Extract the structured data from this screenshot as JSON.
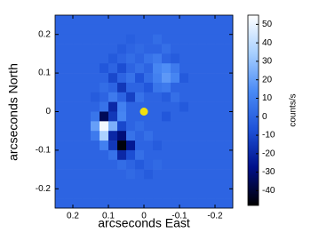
{
  "chart_data": {
    "type": "heatmap",
    "xlabel": "arcseconds East",
    "ylabel": "arcseconds North",
    "colorbar_label": "counts/s",
    "xlim": [
      0.25,
      -0.25
    ],
    "xticks": [
      0.2,
      0.1,
      0,
      -0.1,
      -0.2
    ],
    "ylim": [
      -0.25,
      0.25
    ],
    "yticks": [
      -0.2,
      -0.1,
      0,
      0.1,
      0.2
    ],
    "zlim": [
      -48,
      55
    ],
    "zticks": [
      -40,
      -30,
      -20,
      -10,
      0,
      10,
      20,
      30,
      40,
      50
    ],
    "colormap": [
      "#000000",
      "#00108a",
      "#1e52d8",
      "#4a8af5",
      "#a8d0ff",
      "#ffffff"
    ],
    "marker": {
      "x": 0,
      "y": 0,
      "color": "#f0e010"
    },
    "z": [
      [
        0,
        0,
        0,
        0,
        0,
        0,
        0,
        0,
        0,
        0,
        0,
        0,
        0,
        0,
        0,
        0,
        0,
        0,
        0,
        0
      ],
      [
        0,
        0,
        0,
        0,
        0,
        0,
        0,
        0,
        0,
        0,
        0,
        0,
        0,
        0,
        0,
        0,
        0,
        0,
        0,
        0
      ],
      [
        0,
        0,
        0,
        0,
        0,
        0,
        0,
        0,
        -2,
        0,
        0,
        3,
        0,
        0,
        0,
        0,
        0,
        0,
        0,
        0
      ],
      [
        0,
        0,
        0,
        0,
        0,
        0,
        0,
        -3,
        0,
        2,
        0,
        0,
        4,
        0,
        0,
        0,
        0,
        0,
        0,
        0
      ],
      [
        0,
        0,
        0,
        0,
        0,
        0,
        -4,
        0,
        3,
        0,
        5,
        8,
        0,
        -3,
        0,
        0,
        0,
        0,
        0,
        0
      ],
      [
        0,
        0,
        0,
        0,
        0,
        -5,
        0,
        -8,
        0,
        4,
        0,
        12,
        15,
        8,
        0,
        0,
        0,
        0,
        0,
        0
      ],
      [
        0,
        0,
        0,
        0,
        0,
        0,
        -10,
        0,
        5,
        -6,
        3,
        10,
        18,
        12,
        -4,
        0,
        0,
        0,
        0,
        0
      ],
      [
        0,
        0,
        0,
        0,
        0,
        3,
        0,
        -15,
        0,
        0,
        -5,
        6,
        8,
        0,
        0,
        0,
        0,
        0,
        0,
        0
      ],
      [
        0,
        0,
        0,
        0,
        -3,
        0,
        8,
        0,
        -12,
        5,
        0,
        0,
        -3,
        4,
        0,
        0,
        0,
        0,
        0,
        0
      ],
      [
        0,
        0,
        0,
        0,
        0,
        5,
        -20,
        10,
        0,
        0,
        0,
        0,
        0,
        0,
        -4,
        0,
        0,
        0,
        0,
        0
      ],
      [
        0,
        0,
        0,
        0,
        6,
        -35,
        -15,
        12,
        0,
        0,
        0,
        0,
        -5,
        0,
        0,
        0,
        0,
        0,
        0,
        0
      ],
      [
        0,
        0,
        0,
        0,
        20,
        52,
        25,
        -10,
        0,
        3,
        0,
        0,
        0,
        0,
        0,
        0,
        0,
        0,
        0,
        0
      ],
      [
        0,
        0,
        0,
        0,
        8,
        35,
        -20,
        -30,
        5,
        0,
        4,
        0,
        0,
        0,
        0,
        0,
        0,
        0,
        0,
        0
      ],
      [
        0,
        0,
        0,
        0,
        0,
        10,
        -15,
        -46,
        -25,
        0,
        0,
        -3,
        0,
        0,
        0,
        0,
        0,
        0,
        0,
        0
      ],
      [
        0,
        0,
        0,
        0,
        0,
        0,
        5,
        -20,
        -8,
        4,
        0,
        0,
        0,
        0,
        0,
        0,
        0,
        0,
        0,
        0
      ],
      [
        0,
        0,
        0,
        0,
        0,
        0,
        0,
        3,
        0,
        -4,
        0,
        2,
        0,
        0,
        0,
        0,
        0,
        0,
        0,
        0
      ],
      [
        0,
        0,
        0,
        0,
        0,
        0,
        0,
        0,
        2,
        0,
        -3,
        0,
        0,
        0,
        0,
        0,
        0,
        0,
        0,
        0
      ],
      [
        0,
        0,
        0,
        0,
        0,
        0,
        0,
        0,
        0,
        0,
        0,
        0,
        0,
        0,
        0,
        0,
        0,
        0,
        0,
        0
      ],
      [
        0,
        0,
        0,
        0,
        0,
        0,
        0,
        0,
        0,
        0,
        0,
        0,
        0,
        0,
        0,
        0,
        0,
        0,
        0,
        0
      ],
      [
        0,
        0,
        0,
        0,
        0,
        0,
        0,
        0,
        0,
        0,
        0,
        0,
        0,
        0,
        0,
        0,
        0,
        0,
        0,
        0
      ]
    ]
  }
}
